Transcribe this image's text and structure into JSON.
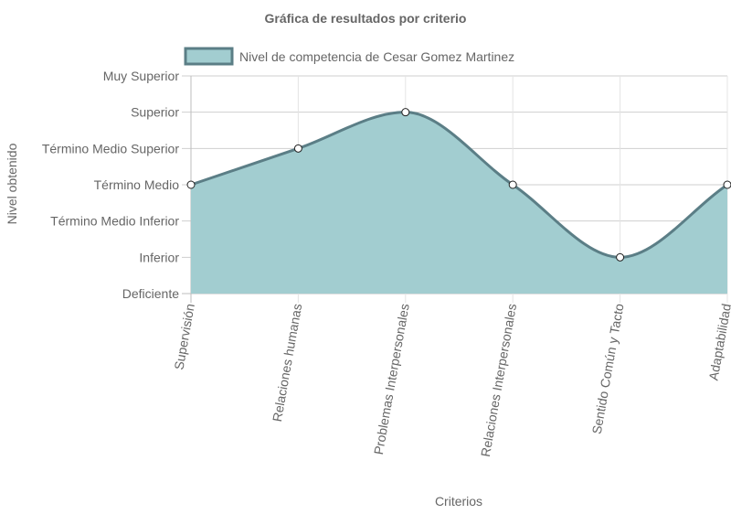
{
  "chart_data": {
    "type": "area",
    "title": "Gráfica de resultados por criterio",
    "xlabel": "Criterios",
    "ylabel": "Nivel obtenido",
    "categories": [
      "Supervisión",
      "Relaciones humanas",
      "Problemas Interpersonales",
      "Relaciones Interpersonales",
      "Sentido Común y Tacto",
      "Adaptabilidad"
    ],
    "y_levels": [
      "Deficiente",
      "Inferior",
      "Término Medio Inferior",
      "Término Medio",
      "Término Medio Superior",
      "Superior",
      "Muy Superior"
    ],
    "ylim": [
      0,
      6
    ],
    "series": [
      {
        "name": "Nivel de competencia de Cesar Gomez Martinez",
        "values": [
          3,
          4,
          5,
          3,
          1,
          3
        ],
        "fill_color": "#a2cdd0",
        "line_color": "#5b7e86"
      }
    ],
    "grid": true,
    "legend_position": "top"
  }
}
